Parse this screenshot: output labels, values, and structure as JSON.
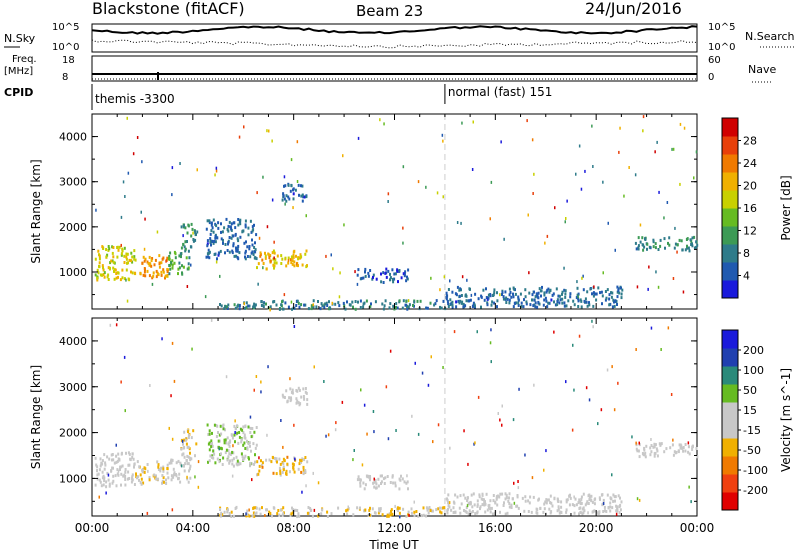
{
  "header": {
    "station": "Blackstone (fitACF)",
    "beam": "Beam 23",
    "date": "24/Jun/2016"
  },
  "top_panels": {
    "nsky": {
      "label": "N.Sky",
      "tick_hi": "10^5",
      "tick_lo": "10^0"
    },
    "nsearch": {
      "label": "N.Search",
      "tick_hi": "10^5",
      "tick_lo": "10^0"
    },
    "freq": {
      "label": "Freq.",
      "unit": "[MHz]",
      "tick_hi": "18",
      "tick_lo": "8"
    },
    "nave": {
      "label": "Nave",
      "tick_hi": "60",
      "tick_lo": "0"
    },
    "cpid": {
      "label": "CPID",
      "modes": [
        {
          "name": "themis -3300",
          "start_hour": 0
        },
        {
          "name": "normal (fast) 151",
          "start_hour": 14
        }
      ]
    }
  },
  "chart_data": [
    {
      "type": "heatmap",
      "title": "",
      "xlabel": "",
      "ylabel": "Slant Range [km]",
      "xlim": [
        0,
        24
      ],
      "ylim": [
        180,
        4500
      ],
      "yticks": [
        "1000",
        "2000",
        "3000",
        "4000"
      ],
      "colorbar": {
        "label": "Power [dB]",
        "range": [
          0,
          32
        ],
        "ticks": [
          "4",
          "8",
          "12",
          "16",
          "20",
          "24",
          "28"
        ],
        "colors": [
          "#1a1adb",
          "#205ab0",
          "#2e7b8a",
          "#3c9a55",
          "#66bb22",
          "#c8d000",
          "#f0b000",
          "#f07a00",
          "#e8400a",
          "#d00000"
        ]
      },
      "regions": [
        {
          "t0": 0.1,
          "t1": 1.7,
          "r0": 850,
          "r1": 1600,
          "level": 18
        },
        {
          "t0": 1.7,
          "t1": 3.0,
          "r0": 900,
          "r1": 1400,
          "level": 22
        },
        {
          "t0": 3.0,
          "t1": 3.9,
          "r0": 950,
          "r1": 1500,
          "level": 12
        },
        {
          "t0": 3.5,
          "t1": 4.1,
          "r0": 1500,
          "r1": 2100,
          "level": 10
        },
        {
          "t0": 4.5,
          "t1": 6.5,
          "r0": 1300,
          "r1": 2200,
          "level": 6
        },
        {
          "t0": 6.5,
          "t1": 8.5,
          "r0": 1100,
          "r1": 1500,
          "level": 20
        },
        {
          "t0": 7.5,
          "t1": 8.5,
          "r0": 2600,
          "r1": 3000,
          "level": 6
        },
        {
          "t0": 5.0,
          "t1": 14.0,
          "r0": 200,
          "r1": 400,
          "level": 8
        },
        {
          "t0": 10.5,
          "t1": 12.5,
          "r0": 800,
          "r1": 1100,
          "level": 5
        },
        {
          "t0": 14.0,
          "t1": 21.0,
          "r0": 250,
          "r1": 700,
          "level": 6
        },
        {
          "t0": 21.5,
          "t1": 24.0,
          "r0": 1500,
          "r1": 1800,
          "level": 9
        }
      ]
    },
    {
      "type": "heatmap",
      "title": "",
      "xlabel": "Time UT",
      "ylabel": "Slant Range [km]",
      "xlim": [
        0,
        24
      ],
      "ylim": [
        180,
        4500
      ],
      "xticks": [
        "00:00",
        "04:00",
        "08:00",
        "12:00",
        "16:00",
        "20:00",
        "00:00"
      ],
      "yticks": [
        "1000",
        "2000",
        "3000",
        "4000"
      ],
      "colorbar": {
        "label": "Velocity [m s^-1]",
        "range": [
          -250,
          250
        ],
        "ticks": [
          "-200",
          "-100",
          "-50",
          "-15",
          "15",
          "50",
          "100",
          "200"
        ],
        "colors": [
          "#e00000",
          "#f04010",
          "#f07a00",
          "#f0b000",
          "#c8c8c8",
          "#c8c8c8",
          "#66bb22",
          "#2a8a7a",
          "#2040b0",
          "#1a1adb"
        ]
      },
      "regions": [
        {
          "t0": 0.1,
          "t1": 1.7,
          "r0": 850,
          "r1": 1600,
          "level": 0
        },
        {
          "t0": 1.7,
          "t1": 3.0,
          "r0": 900,
          "r1": 1400,
          "level": -40
        },
        {
          "t0": 3.0,
          "t1": 3.9,
          "r0": 950,
          "r1": 1500,
          "level": 0
        },
        {
          "t0": 3.5,
          "t1": 4.1,
          "r0": 1500,
          "r1": 2100,
          "level": -50
        },
        {
          "t0": 4.5,
          "t1": 6.5,
          "r0": 1300,
          "r1": 2200,
          "level": 40
        },
        {
          "t0": 6.5,
          "t1": 8.5,
          "r0": 1100,
          "r1": 1500,
          "level": -60
        },
        {
          "t0": 7.5,
          "t1": 8.5,
          "r0": 2600,
          "r1": 3000,
          "level": 0
        },
        {
          "t0": 5.0,
          "t1": 14.0,
          "r0": 200,
          "r1": 400,
          "level": -45
        },
        {
          "t0": 10.5,
          "t1": 12.5,
          "r0": 800,
          "r1": 1100,
          "level": 0
        },
        {
          "t0": 14.0,
          "t1": 21.0,
          "r0": 250,
          "r1": 700,
          "level": 0
        },
        {
          "t0": 21.5,
          "t1": 24.0,
          "r0": 1500,
          "r1": 1800,
          "level": 0
        }
      ]
    }
  ],
  "beam_change_hour": 14
}
